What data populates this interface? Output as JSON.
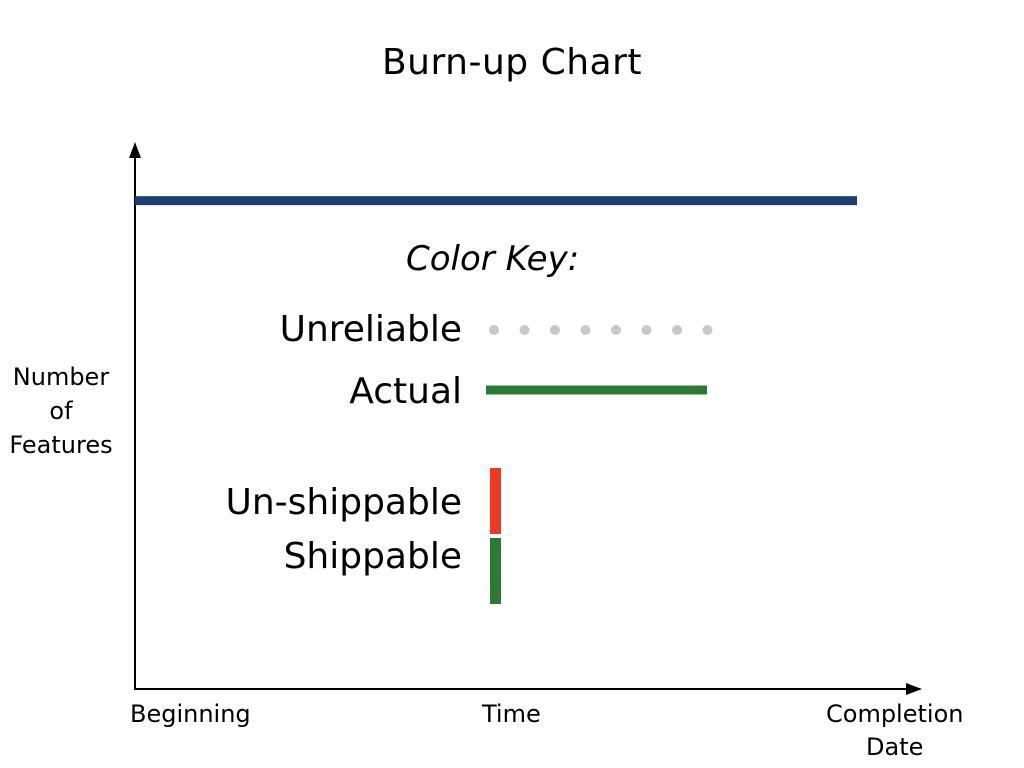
{
  "chart_data": {
    "type": "line",
    "title": "Burn-up Chart",
    "xlabel": "Time",
    "ylabel": [
      "Number",
      "of",
      "Features"
    ],
    "x_tick_labels": {
      "start": "Beginning",
      "end": [
        "Completion",
        "Date"
      ]
    },
    "grid": false,
    "series": [
      {
        "role": "scope",
        "color": "#1f3f73",
        "style": "solid",
        "values": [
          1,
          1
        ],
        "x": [
          0,
          1
        ]
      }
    ],
    "ylim": [
      0,
      1.12
    ],
    "xlim": [
      0,
      1.09
    ],
    "legend": {
      "heading": "Color Key:",
      "placement": "center",
      "items": [
        {
          "label": "Unreliable",
          "style": "dotted-line",
          "color": "#c8c8c8"
        },
        {
          "label": "Actual",
          "style": "solid-line",
          "color": "#2d7a36"
        },
        {
          "label": "Un-shippable",
          "style": "vertical-bar",
          "color": "#ee3a24"
        },
        {
          "label": "Shippable",
          "style": "vertical-bar",
          "color": "#2d7a36"
        }
      ]
    }
  }
}
